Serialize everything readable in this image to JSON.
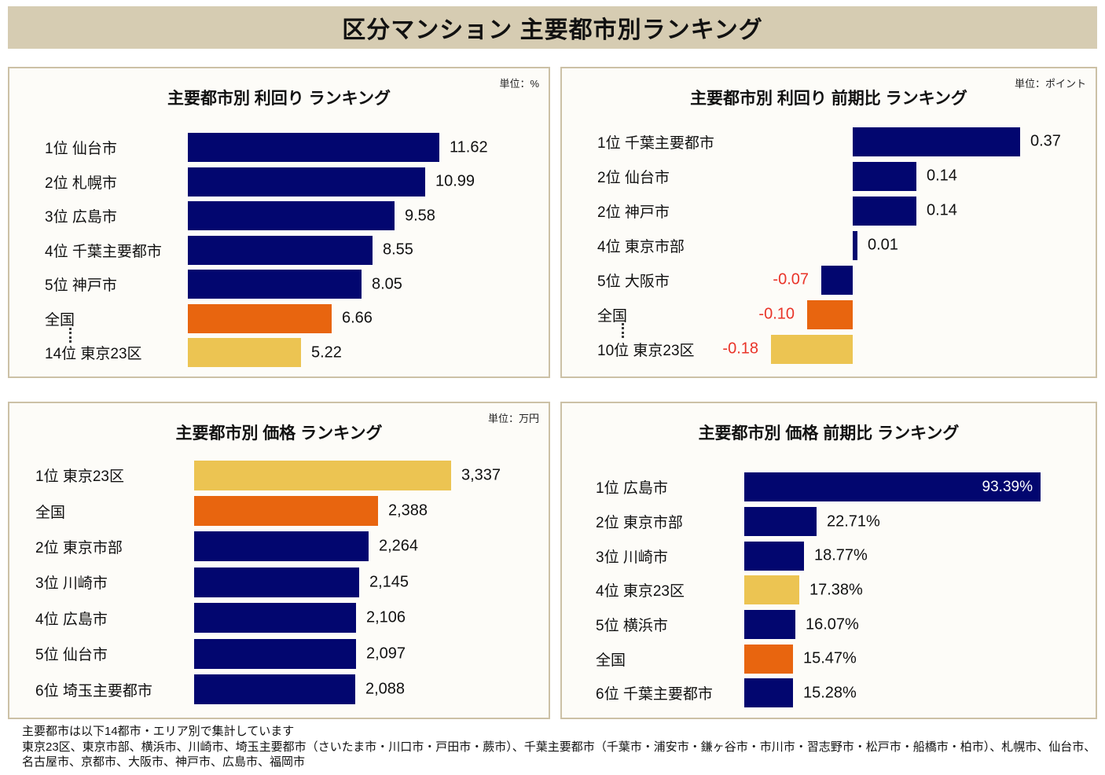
{
  "page": {
    "title": "区分マンション 主要都市別ランキング"
  },
  "colors": {
    "navy": "#02066F",
    "orange": "#E8650F",
    "yellow": "#ECC452",
    "negative_red": "#E93429",
    "header_bg": "#D6CCB2",
    "panel_border": "#CCC1A6",
    "panel_bg": "#FDFCF8"
  },
  "footnote": {
    "line1": "主要都市は以下14都市・エリア別で集計しています",
    "line2": "東京23区、東京市部、横浜市、川崎市、埼玉主要都市（さいたま市・川口市・戸田市・蕨市）、千葉主要都市（千葉市・浦安市・鎌ヶ谷市・市川市・習志野市・松戸市・船橋市・柏市）、札幌市、仙台市、名古屋市、京都市、大阪市、神戸市、広島市、福岡市"
  },
  "chart_data": [
    {
      "id": "yield",
      "type": "bar",
      "orientation": "horizontal",
      "title": "主要都市別 利回り ランキング",
      "unit": "単位：%",
      "xlim": [
        0,
        11.62
      ],
      "rows": [
        {
          "label": "1位 仙台市",
          "value": 11.62,
          "display": "11.62",
          "color": "navy"
        },
        {
          "label": "2位 札幌市",
          "value": 10.99,
          "display": "10.99",
          "color": "navy"
        },
        {
          "label": "3位 広島市",
          "value": 9.58,
          "display": "9.58",
          "color": "navy"
        },
        {
          "label": "4位 千葉主要都市",
          "value": 8.55,
          "display": "8.55",
          "color": "navy"
        },
        {
          "label": "5位 神戸市",
          "value": 8.05,
          "display": "8.05",
          "color": "navy"
        },
        {
          "label": "全国",
          "value": 6.66,
          "display": "6.66",
          "color": "orange",
          "dots": true
        },
        {
          "label": "14位 東京23区",
          "value": 5.22,
          "display": "5.22",
          "color": "yellow"
        }
      ]
    },
    {
      "id": "yield-change",
      "type": "bar",
      "orientation": "horizontal",
      "title": "主要都市別 利回り 前期比 ランキング",
      "unit": "単位：ポイント",
      "xlim": [
        -0.18,
        0.37
      ],
      "rows": [
        {
          "label": "1位 千葉主要都市",
          "value": 0.37,
          "display": "0.37",
          "color": "navy"
        },
        {
          "label": "2位 仙台市",
          "value": 0.14,
          "display": "0.14",
          "color": "navy"
        },
        {
          "label": "2位 神戸市",
          "value": 0.14,
          "display": "0.14",
          "color": "navy"
        },
        {
          "label": "4位 東京市部",
          "value": 0.01,
          "display": "0.01",
          "color": "navy"
        },
        {
          "label": "5位 大阪市",
          "value": -0.07,
          "display": "-0.07",
          "color": "navy"
        },
        {
          "label": "全国",
          "value": -0.1,
          "display": "-0.10",
          "color": "orange",
          "dots": true
        },
        {
          "label": "10位 東京23区",
          "value": -0.18,
          "display": "-0.18",
          "color": "yellow"
        }
      ]
    },
    {
      "id": "price",
      "type": "bar",
      "orientation": "horizontal",
      "title": "主要都市別 価格 ランキング",
      "unit": "単位：万円",
      "xlim": [
        0,
        3337
      ],
      "rows": [
        {
          "label": "1位 東京23区",
          "value": 3337,
          "display": "3,337",
          "color": "yellow"
        },
        {
          "label": "全国",
          "value": 2388,
          "display": "2,388",
          "color": "orange"
        },
        {
          "label": "2位 東京市部",
          "value": 2264,
          "display": "2,264",
          "color": "navy"
        },
        {
          "label": "3位 川崎市",
          "value": 2145,
          "display": "2,145",
          "color": "navy"
        },
        {
          "label": "4位 広島市",
          "value": 2106,
          "display": "2,106",
          "color": "navy"
        },
        {
          "label": "5位 仙台市",
          "value": 2097,
          "display": "2,097",
          "color": "navy"
        },
        {
          "label": "6位 埼玉主要都市",
          "value": 2088,
          "display": "2,088",
          "color": "navy"
        }
      ]
    },
    {
      "id": "price-change",
      "type": "bar",
      "orientation": "horizontal",
      "title": "主要都市別 価格 前期比 ランキング",
      "unit": "",
      "xlim": [
        0,
        93.39
      ],
      "rows": [
        {
          "label": "1位 広島市",
          "value": 93.39,
          "display": "93.39%",
          "color": "navy",
          "value_inside": true
        },
        {
          "label": "2位 東京市部",
          "value": 22.71,
          "display": "22.71%",
          "color": "navy"
        },
        {
          "label": "3位 川崎市",
          "value": 18.77,
          "display": "18.77%",
          "color": "navy"
        },
        {
          "label": "4位 東京23区",
          "value": 17.38,
          "display": "17.38%",
          "color": "yellow"
        },
        {
          "label": "5位 横浜市",
          "value": 16.07,
          "display": "16.07%",
          "color": "navy"
        },
        {
          "label": "全国",
          "value": 15.47,
          "display": "15.47%",
          "color": "orange"
        },
        {
          "label": "6位 千葉主要都市",
          "value": 15.28,
          "display": "15.28%",
          "color": "navy"
        }
      ]
    }
  ]
}
